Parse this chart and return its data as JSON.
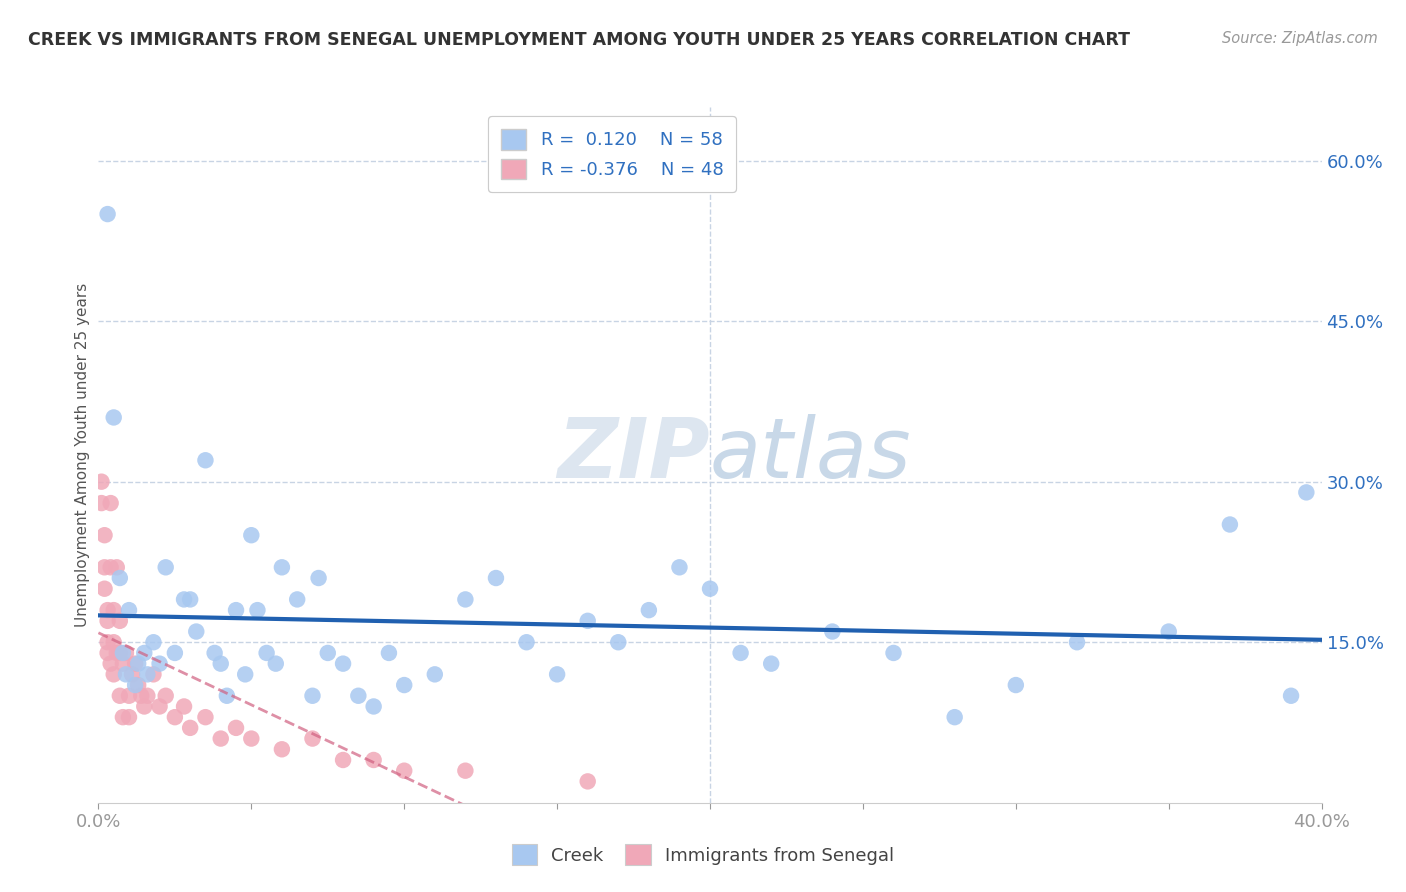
{
  "title": "CREEK VS IMMIGRANTS FROM SENEGAL UNEMPLOYMENT AMONG YOUTH UNDER 25 YEARS CORRELATION CHART",
  "source": "Source: ZipAtlas.com",
  "ylabel": "Unemployment Among Youth under 25 years",
  "xlim": [
    0.0,
    0.4
  ],
  "ylim": [
    0.0,
    0.65
  ],
  "xticks": [
    0.0,
    0.05,
    0.1,
    0.15,
    0.2,
    0.25,
    0.3,
    0.35,
    0.4
  ],
  "xtick_labels": [
    "0.0%",
    "",
    "",
    "",
    "",
    "",
    "",
    "",
    "40.0%"
  ],
  "ytick_labels_right": [
    "15.0%",
    "30.0%",
    "45.0%",
    "60.0%"
  ],
  "ytick_vals_right": [
    0.15,
    0.3,
    0.45,
    0.6
  ],
  "color_creek": "#a8c8f0",
  "color_senegal": "#f0a8b8",
  "color_creek_line": "#2060b0",
  "color_senegal_line": "#d06080",
  "color_text_blue": "#3070c0",
  "background_color": "#ffffff",
  "grid_color": "#c8d4e4",
  "creek_x": [
    0.003,
    0.005,
    0.007,
    0.008,
    0.009,
    0.01,
    0.012,
    0.013,
    0.015,
    0.016,
    0.018,
    0.02,
    0.022,
    0.025,
    0.028,
    0.03,
    0.032,
    0.035,
    0.038,
    0.04,
    0.042,
    0.045,
    0.048,
    0.05,
    0.052,
    0.055,
    0.058,
    0.06,
    0.065,
    0.07,
    0.072,
    0.075,
    0.08,
    0.085,
    0.09,
    0.095,
    0.1,
    0.11,
    0.12,
    0.13,
    0.14,
    0.15,
    0.16,
    0.17,
    0.18,
    0.19,
    0.2,
    0.21,
    0.22,
    0.24,
    0.26,
    0.28,
    0.3,
    0.32,
    0.35,
    0.37,
    0.39,
    0.395
  ],
  "creek_y": [
    0.55,
    0.36,
    0.21,
    0.14,
    0.12,
    0.18,
    0.11,
    0.13,
    0.14,
    0.12,
    0.15,
    0.13,
    0.22,
    0.14,
    0.19,
    0.19,
    0.16,
    0.32,
    0.14,
    0.13,
    0.1,
    0.18,
    0.12,
    0.25,
    0.18,
    0.14,
    0.13,
    0.22,
    0.19,
    0.1,
    0.21,
    0.14,
    0.13,
    0.1,
    0.09,
    0.14,
    0.11,
    0.12,
    0.19,
    0.21,
    0.15,
    0.12,
    0.17,
    0.15,
    0.18,
    0.22,
    0.2,
    0.14,
    0.13,
    0.16,
    0.14,
    0.08,
    0.11,
    0.15,
    0.16,
    0.26,
    0.1,
    0.29
  ],
  "senegal_x": [
    0.001,
    0.001,
    0.002,
    0.002,
    0.002,
    0.003,
    0.003,
    0.003,
    0.003,
    0.004,
    0.004,
    0.004,
    0.005,
    0.005,
    0.005,
    0.006,
    0.006,
    0.007,
    0.007,
    0.007,
    0.008,
    0.008,
    0.009,
    0.01,
    0.01,
    0.011,
    0.012,
    0.013,
    0.014,
    0.015,
    0.016,
    0.018,
    0.02,
    0.022,
    0.025,
    0.028,
    0.03,
    0.035,
    0.04,
    0.045,
    0.05,
    0.06,
    0.07,
    0.08,
    0.09,
    0.1,
    0.12,
    0.16
  ],
  "senegal_y": [
    0.3,
    0.28,
    0.25,
    0.22,
    0.2,
    0.18,
    0.17,
    0.15,
    0.14,
    0.28,
    0.13,
    0.22,
    0.18,
    0.15,
    0.12,
    0.22,
    0.14,
    0.17,
    0.14,
    0.1,
    0.13,
    0.08,
    0.14,
    0.1,
    0.08,
    0.12,
    0.13,
    0.11,
    0.1,
    0.09,
    0.1,
    0.12,
    0.09,
    0.1,
    0.08,
    0.09,
    0.07,
    0.08,
    0.06,
    0.07,
    0.06,
    0.05,
    0.06,
    0.04,
    0.04,
    0.03,
    0.03,
    0.02
  ]
}
